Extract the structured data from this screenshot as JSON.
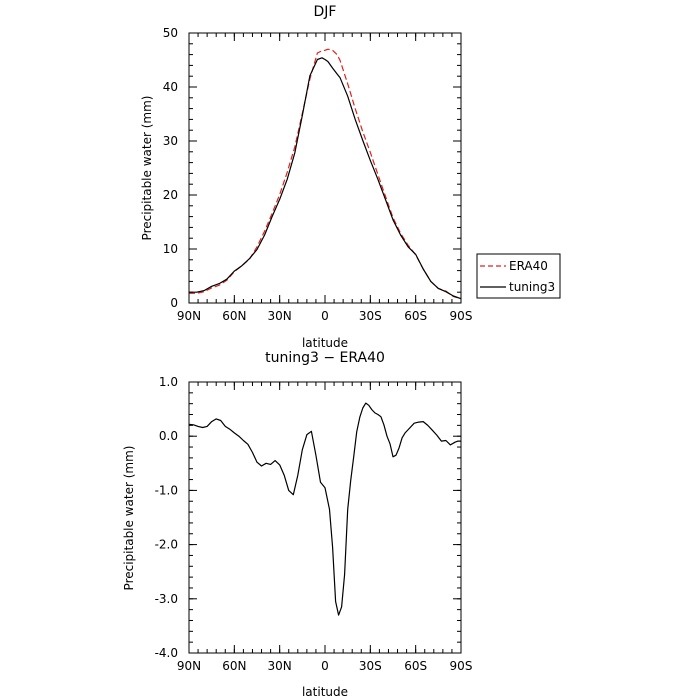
{
  "chart_data": [
    {
      "type": "line",
      "title": "DJF",
      "xlabel": "latitude",
      "ylabel": "Precipitable water (mm)",
      "xlim": [
        90,
        -90
      ],
      "ylim": [
        0,
        50
      ],
      "xticks": [
        {
          "value": 90,
          "label": "90N"
        },
        {
          "value": 60,
          "label": "60N"
        },
        {
          "value": 30,
          "label": "30N"
        },
        {
          "value": 0,
          "label": "0"
        },
        {
          "value": -30,
          "label": "30S"
        },
        {
          "value": -60,
          "label": "60S"
        },
        {
          "value": -90,
          "label": "90S"
        }
      ],
      "yticks": [
        {
          "value": 0,
          "label": "0"
        },
        {
          "value": 10,
          "label": "10"
        },
        {
          "value": 20,
          "label": "20"
        },
        {
          "value": 30,
          "label": "30"
        },
        {
          "value": 40,
          "label": "40"
        },
        {
          "value": 50,
          "label": "50"
        }
      ],
      "grid": false,
      "legend_placement": "right",
      "series": [
        {
          "name": "ERA40",
          "color": "#e0211d",
          "dash": "dashed",
          "x": [
            90,
            85,
            80,
            75,
            70,
            65,
            60,
            55,
            50,
            45,
            40,
            35,
            30,
            25,
            20,
            15,
            10,
            5,
            2,
            0,
            -2,
            -5,
            -8,
            -10,
            -15,
            -20,
            -25,
            -30,
            -35,
            -40,
            -45,
            -50,
            -55,
            -60,
            -65,
            -70,
            -75,
            -80,
            -85,
            -90
          ],
          "y": [
            1.8,
            1.8,
            2.1,
            2.8,
            3.3,
            4.2,
            5.8,
            6.9,
            8.1,
            10.4,
            13.3,
            16.6,
            20.1,
            24.2,
            28.9,
            35.1,
            41.5,
            46.3,
            46.7,
            46.8,
            47.0,
            46.8,
            46.0,
            44.9,
            40.6,
            36.0,
            31.7,
            27.9,
            23.8,
            19.8,
            15.8,
            12.9,
            10.7,
            8.9,
            6.3,
            4.0,
            2.7,
            2.2,
            1.2,
            0.8
          ]
        },
        {
          "name": "tuning3",
          "color": "#000000",
          "dash": "solid",
          "x": [
            90,
            85,
            80,
            75,
            70,
            65,
            60,
            55,
            50,
            45,
            40,
            35,
            30,
            25,
            20,
            15,
            10,
            5,
            2,
            0,
            -2,
            -5,
            -8,
            -10,
            -15,
            -20,
            -25,
            -30,
            -35,
            -40,
            -45,
            -50,
            -55,
            -60,
            -65,
            -70,
            -75,
            -80,
            -85,
            -90
          ],
          "y": [
            2.0,
            2.0,
            2.3,
            3.1,
            3.6,
            4.4,
            5.9,
            6.9,
            8.2,
            9.9,
            12.6,
            16.0,
            19.2,
            22.9,
            27.8,
            34.7,
            42.1,
            45.1,
            45.4,
            45.1,
            44.7,
            43.5,
            42.4,
            41.7,
            38.3,
            34.0,
            30.1,
            26.4,
            22.9,
            19.2,
            15.4,
            12.6,
            10.4,
            9.0,
            6.3,
            4.0,
            2.7,
            2.1,
            1.3,
            0.8
          ]
        }
      ]
    },
    {
      "type": "line",
      "title": "tuning3 − ERA40",
      "xlabel": "latitude",
      "ylabel": "Precipitable water (mm)",
      "xlim": [
        90,
        -90
      ],
      "ylim": [
        -4,
        1
      ],
      "xticks": [
        {
          "value": 90,
          "label": "90N"
        },
        {
          "value": 60,
          "label": "60N"
        },
        {
          "value": 30,
          "label": "30N"
        },
        {
          "value": 0,
          "label": "0"
        },
        {
          "value": -30,
          "label": "30S"
        },
        {
          "value": -60,
          "label": "60S"
        },
        {
          "value": -90,
          "label": "90S"
        }
      ],
      "yticks": [
        {
          "value": 1,
          "label": "1.0"
        },
        {
          "value": 0,
          "label": "0.0"
        },
        {
          "value": -1,
          "label": "-1.0"
        },
        {
          "value": -2,
          "label": "-2.0"
        },
        {
          "value": -3,
          "label": "-3.0"
        },
        {
          "value": -4,
          "label": "-4.0"
        }
      ],
      "grid": false,
      "series": [
        {
          "color": "#000000",
          "dash": "solid",
          "x": [
            90,
            87,
            84,
            81,
            78,
            75,
            72,
            69,
            66,
            63,
            60,
            57,
            54,
            51,
            48,
            45,
            42,
            39,
            36,
            33,
            30,
            27,
            24,
            21,
            18,
            15,
            12,
            9,
            6,
            3,
            0,
            -3,
            -5,
            -7,
            -9,
            -11,
            -13,
            -15,
            -17,
            -19,
            -21,
            -23,
            -25,
            -27,
            -29,
            -31,
            -33,
            -35,
            -37,
            -39,
            -41,
            -43,
            -45,
            -47,
            -49,
            -51,
            -53,
            -56,
            -59,
            -62,
            -65,
            -68,
            -71,
            -74,
            -77,
            -80,
            -83,
            -86,
            -88,
            -90
          ],
          "y": [
            0.22,
            0.21,
            0.18,
            0.16,
            0.18,
            0.27,
            0.32,
            0.29,
            0.18,
            0.13,
            0.06,
            0.0,
            -0.08,
            -0.15,
            -0.3,
            -0.48,
            -0.55,
            -0.5,
            -0.52,
            -0.45,
            -0.53,
            -0.72,
            -1.0,
            -1.08,
            -0.72,
            -0.25,
            0.03,
            0.09,
            -0.35,
            -0.85,
            -0.95,
            -1.35,
            -2.05,
            -3.05,
            -3.3,
            -3.15,
            -2.55,
            -1.35,
            -0.82,
            -0.38,
            0.08,
            0.35,
            0.52,
            0.61,
            0.57,
            0.49,
            0.43,
            0.4,
            0.36,
            0.21,
            0.0,
            -0.14,
            -0.38,
            -0.35,
            -0.22,
            -0.03,
            0.06,
            0.15,
            0.24,
            0.26,
            0.27,
            0.2,
            0.11,
            0.02,
            -0.09,
            -0.08,
            -0.16,
            -0.11,
            -0.09,
            -0.09
          ]
        }
      ]
    }
  ]
}
